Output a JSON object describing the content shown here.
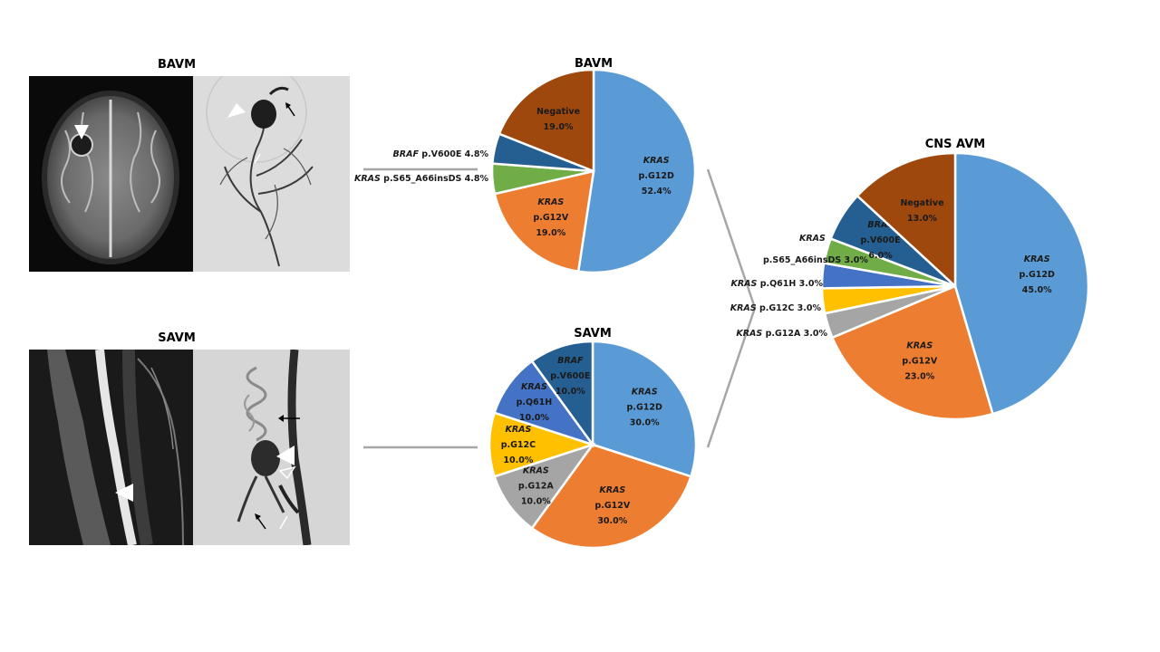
{
  "images": {
    "bavm_title": "BAVM",
    "savm_title": "SAVM"
  },
  "colors": {
    "kras_g12d": "#5b9bd5",
    "kras_g12v": "#ed7d31",
    "kras_g12a": "#a5a5a5",
    "kras_g12c": "#ffc000",
    "kras_q61h": "#4472c4",
    "kras_s65": "#70ad47",
    "braf_v600e": "#255e91",
    "negative": "#9e480e"
  },
  "chart_data": [
    {
      "type": "pie",
      "title": "BAVM",
      "slices": [
        {
          "gene": "KRAS",
          "variant": "p.G12D",
          "value": 52.4,
          "label": "52.4%",
          "color": "#5b9bd5"
        },
        {
          "gene": "KRAS",
          "variant": "p.G12V",
          "value": 19.0,
          "label": "19.0%",
          "color": "#ed7d31"
        },
        {
          "gene": "KRAS",
          "variant": "p.S65_A66insDS",
          "value": 4.8,
          "label": "4.8%",
          "color": "#70ad47"
        },
        {
          "gene": "BRAF",
          "variant": "p.V600E",
          "value": 4.8,
          "label": "4.8%",
          "color": "#255e91"
        },
        {
          "gene": "",
          "variant": "Negative",
          "value": 19.0,
          "label": "19.0%",
          "color": "#9e480e"
        }
      ]
    },
    {
      "type": "pie",
      "title": "SAVM",
      "slices": [
        {
          "gene": "KRAS",
          "variant": "p.G12D",
          "value": 30.0,
          "label": "30.0%",
          "color": "#5b9bd5"
        },
        {
          "gene": "KRAS",
          "variant": "p.G12V",
          "value": 30.0,
          "label": "30.0%",
          "color": "#ed7d31"
        },
        {
          "gene": "KRAS",
          "variant": "p.G12A",
          "value": 10.0,
          "label": "10.0%",
          "color": "#a5a5a5"
        },
        {
          "gene": "KRAS",
          "variant": "p.G12C",
          "value": 10.0,
          "label": "10.0%",
          "color": "#ffc000"
        },
        {
          "gene": "KRAS",
          "variant": "p.Q61H",
          "value": 10.0,
          "label": "10.0%",
          "color": "#4472c4"
        },
        {
          "gene": "BRAF",
          "variant": "p.V600E",
          "value": 10.0,
          "label": "10.0%",
          "color": "#255e91"
        }
      ]
    },
    {
      "type": "pie",
      "title": "CNS AVM",
      "slices": [
        {
          "gene": "KRAS",
          "variant": "p.G12D",
          "value": 45.0,
          "label": "45.0%",
          "color": "#5b9bd5"
        },
        {
          "gene": "KRAS",
          "variant": "p.G12V",
          "value": 23.0,
          "label": "23.0%",
          "color": "#ed7d31"
        },
        {
          "gene": "KRAS",
          "variant": "p.G12A",
          "value": 3.0,
          "label": "3.0%",
          "color": "#a5a5a5"
        },
        {
          "gene": "KRAS",
          "variant": "p.G12C",
          "value": 3.0,
          "label": "3.0%",
          "color": "#ffc000"
        },
        {
          "gene": "KRAS",
          "variant": "p.Q61H",
          "value": 3.0,
          "label": "3.0%",
          "color": "#4472c4"
        },
        {
          "gene": "KRAS",
          "variant": "p.S65_A66insDS",
          "value": 3.0,
          "label": "3.0%",
          "color": "#70ad47"
        },
        {
          "gene": "BRAF",
          "variant": "p.V600E",
          "value": 6.0,
          "label": "6.0%",
          "color": "#255e91"
        },
        {
          "gene": "",
          "variant": "Negative",
          "value": 13.0,
          "label": "13.0%",
          "color": "#9e480e"
        }
      ]
    }
  ]
}
